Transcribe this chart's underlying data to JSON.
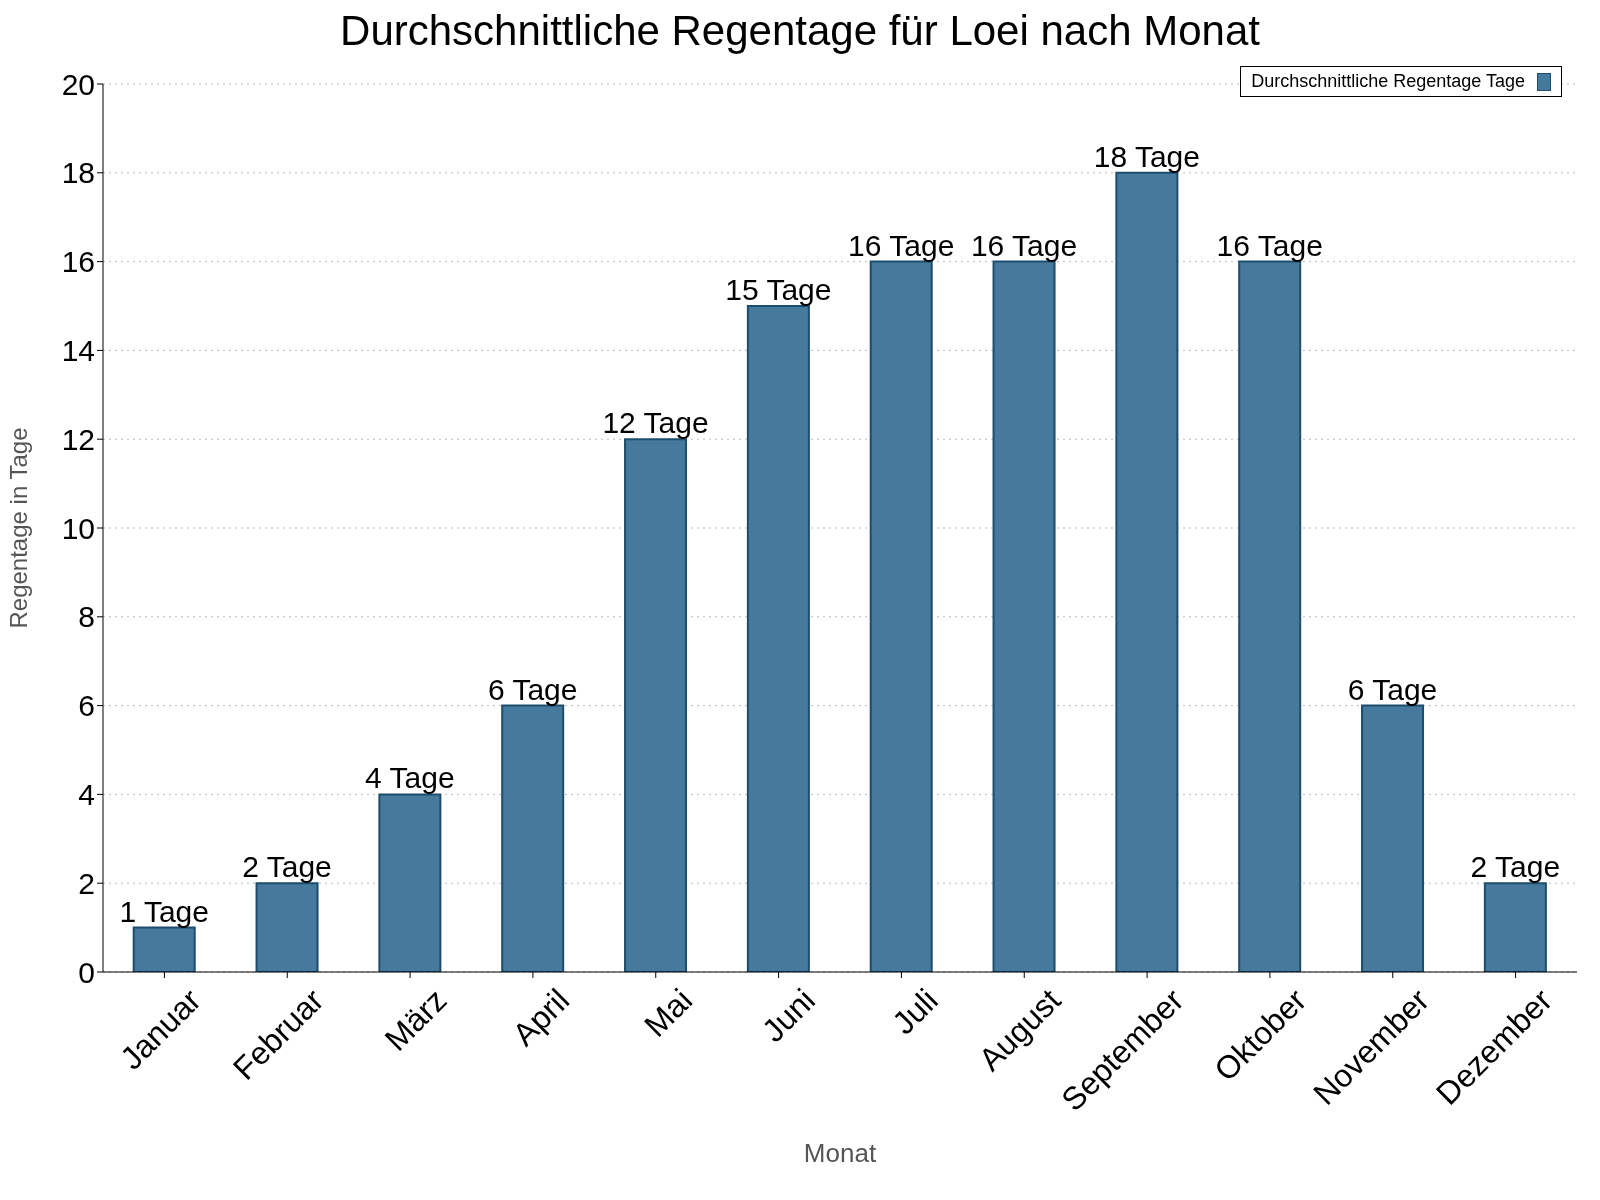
{
  "chart_data": {
    "type": "bar",
    "title": "Durchschnittliche Regentage für Loei nach Monat",
    "xlabel": "Monat",
    "ylabel": "Regentage in Tage",
    "categories": [
      "Januar",
      "Februar",
      "März",
      "April",
      "Mai",
      "Juni",
      "Juli",
      "August",
      "September",
      "Oktober",
      "November",
      "Dezember"
    ],
    "series": [
      {
        "name": "Durchschnittliche Regentage Tage",
        "color": "#467a9c",
        "values": [
          1,
          2,
          4,
          6,
          12,
          15,
          16,
          16,
          18,
          16,
          6,
          2
        ],
        "value_labels": [
          "1 Tage",
          "2 Tage",
          "4 Tage",
          "6 Tage",
          "12 Tage",
          "15 Tage",
          "16 Tage",
          "16 Tage",
          "18 Tage",
          "16 Tage",
          "6 Tage",
          "2 Tage"
        ]
      }
    ],
    "ylim": [
      0,
      20
    ],
    "yticks": [
      0,
      2,
      4,
      6,
      8,
      10,
      12,
      14,
      16,
      18,
      20
    ],
    "grid": "y",
    "legend": "top right"
  }
}
